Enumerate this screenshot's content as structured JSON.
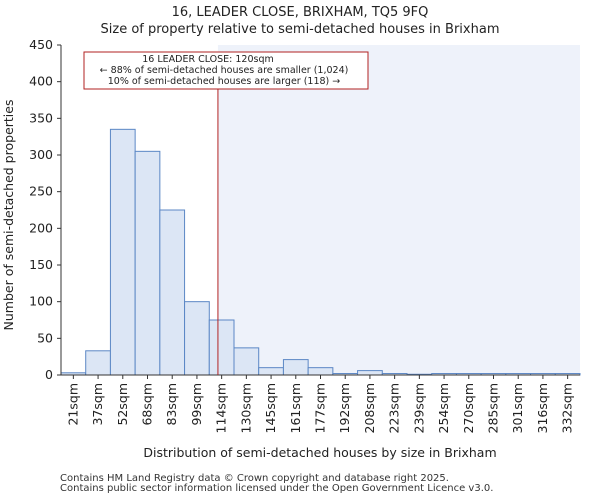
{
  "chart_data": {
    "type": "bar",
    "title": "16, LEADER CLOSE, BRIXHAM, TQ5 9FQ",
    "subtitle": "Size of property relative to semi-detached houses in Brixham",
    "xlabel": "Distribution of semi-detached houses by size in Brixham",
    "ylabel": "Number of semi-detached properties",
    "categories": [
      "21sqm",
      "37sqm",
      "52sqm",
      "68sqm",
      "83sqm",
      "99sqm",
      "114sqm",
      "130sqm",
      "145sqm",
      "161sqm",
      "177sqm",
      "192sqm",
      "208sqm",
      "223sqm",
      "239sqm",
      "254sqm",
      "270sqm",
      "285sqm",
      "301sqm",
      "316sqm",
      "332sqm"
    ],
    "values": [
      3,
      33,
      335,
      305,
      225,
      100,
      75,
      37,
      10,
      21,
      10,
      2,
      6,
      2,
      1,
      2,
      2,
      2,
      2,
      2,
      2
    ],
    "ylim": [
      0,
      450
    ],
    "yticks": [
      0,
      50,
      100,
      150,
      200,
      250,
      300,
      350,
      400,
      450
    ],
    "marker": {
      "value_index": 6.35,
      "color": "#b22222"
    },
    "annotation": {
      "line1": "16 LEADER CLOSE: 120sqm",
      "line2": "← 88% of semi-detached houses are smaller (1,024)",
      "line3": "10% of semi-detached houses are larger (118) →"
    },
    "colors": {
      "bar_fill": "#dce6f5",
      "bar_stroke": "#5b87c5",
      "highlight_bg": "#eef2fa"
    }
  },
  "footer": {
    "line1": "Contains HM Land Registry data © Crown copyright and database right 2025.",
    "line2": "Contains public sector information licensed under the Open Government Licence v3.0."
  }
}
